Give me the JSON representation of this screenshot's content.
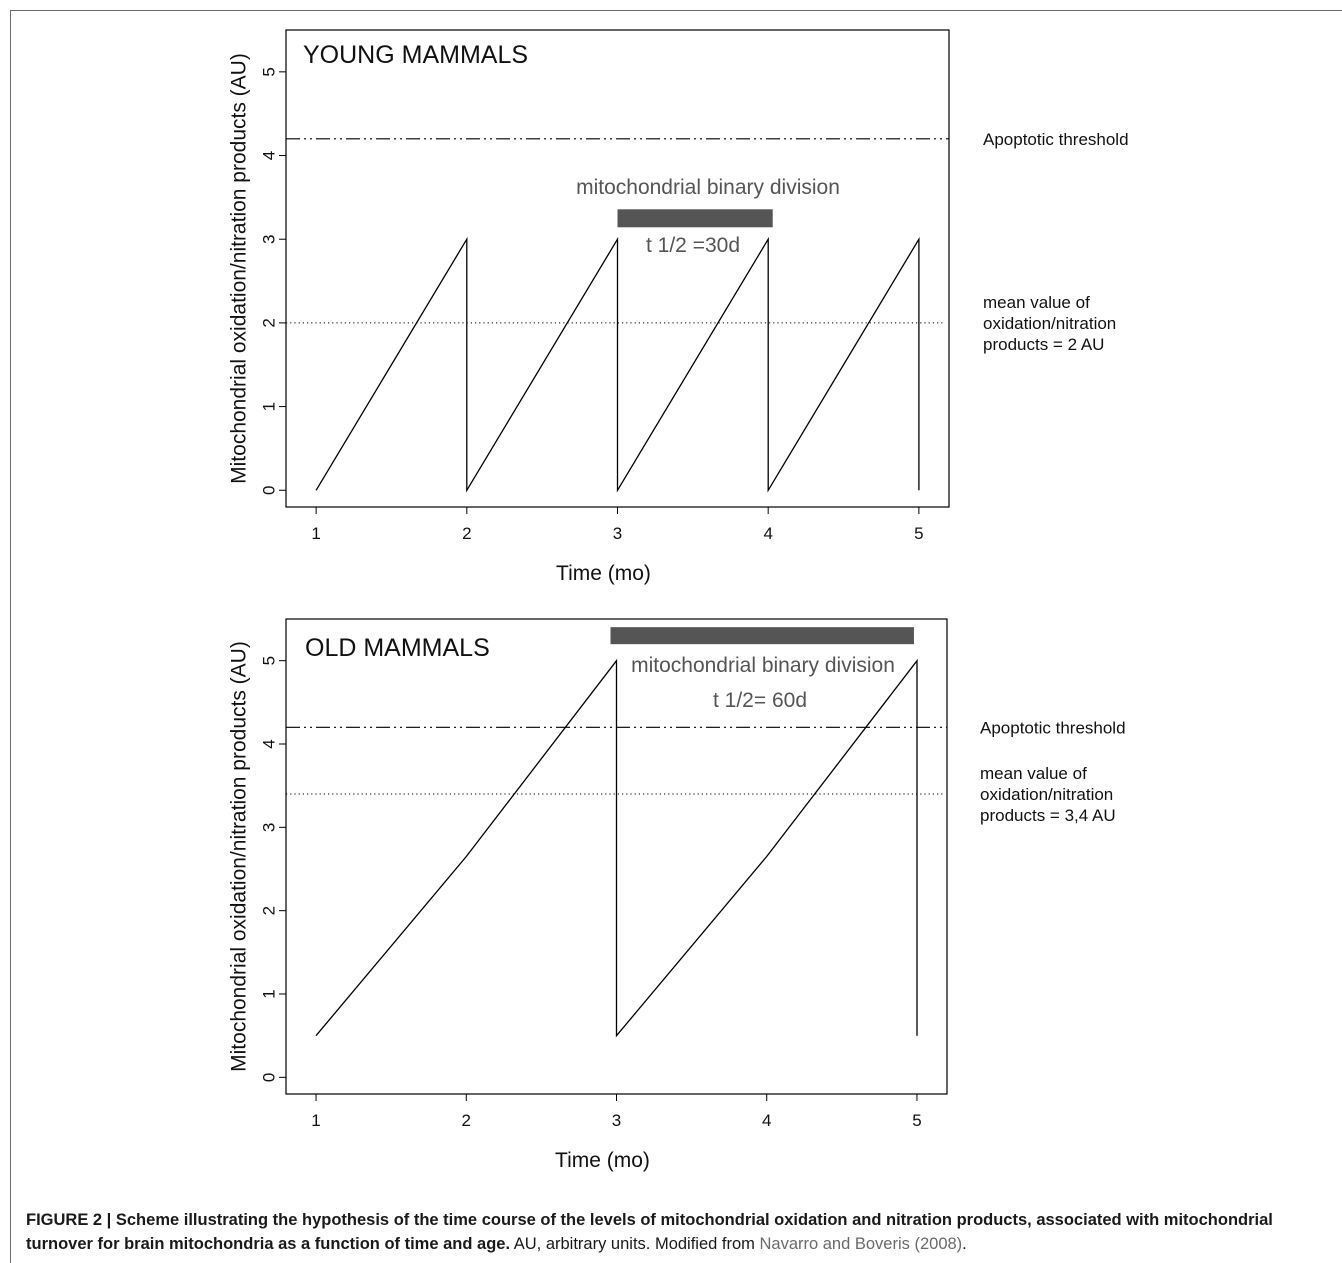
{
  "chart_data": [
    {
      "type": "line",
      "panel_label": "YOUNG MAMMALS",
      "xlabel": "Time (mo)",
      "ylabel": "Mitochondrial oxidation/nitration products (AU)",
      "xlim": [
        0.8,
        5.2
      ],
      "ylim": [
        -0.2,
        5.5
      ],
      "x_ticks": [
        1,
        2,
        3,
        4,
        5
      ],
      "y_ticks": [
        0,
        1,
        2,
        3,
        4,
        5
      ],
      "grid": false,
      "series": [
        {
          "values": [
            [
              1,
              0
            ],
            [
              2,
              3
            ],
            [
              2,
              0
            ],
            [
              3,
              3
            ],
            [
              3,
              0
            ],
            [
              4,
              3
            ],
            [
              4,
              0
            ],
            [
              5,
              3
            ],
            [
              5,
              0
            ]
          ]
        }
      ],
      "reference_lines": [
        {
          "y": 4.2,
          "style": "dash-dot-dot",
          "label": "Apoptotic threshold"
        },
        {
          "y": 2.0,
          "style": "dotted",
          "label_lines": [
            "mean value of",
            "oxidation/nitration",
            "products = 2 AU"
          ]
        }
      ],
      "division_bar": {
        "x_start": 3.0,
        "x_end": 4.03,
        "y": 3.25
      },
      "division_label": "mitochondrial binary division",
      "halflife_label": "t 1/2 =30d"
    },
    {
      "type": "line",
      "panel_label": "OLD MAMMALS",
      "xlabel": "Time (mo)",
      "ylabel": "Mitochondrial oxidation/nitration products (AU)",
      "xlim": [
        0.8,
        5.2
      ],
      "ylim": [
        -0.2,
        5.5
      ],
      "x_ticks": [
        1,
        2,
        3,
        4,
        5
      ],
      "y_ticks": [
        0,
        1,
        2,
        3,
        4,
        5
      ],
      "grid": false,
      "series": [
        {
          "values": [
            [
              1,
              0.5
            ],
            [
              2,
              2.65
            ],
            [
              3,
              5
            ],
            [
              3,
              0.5
            ],
            [
              4,
              2.65
            ],
            [
              5,
              5
            ],
            [
              5,
              0.5
            ]
          ]
        }
      ],
      "reference_lines": [
        {
          "y": 4.2,
          "style": "dash-dot-dot",
          "label": "Apoptotic threshold"
        },
        {
          "y": 3.4,
          "style": "dotted",
          "label_lines": [
            "mean value of",
            "oxidation/nitration",
            "products = 3,4 AU"
          ]
        }
      ],
      "division_bar": {
        "x_start": 2.96,
        "x_end": 4.98,
        "y": 5.3
      },
      "division_label": "mitochondrial binary division",
      "halflife_label": "t 1/2= 60d"
    }
  ],
  "caption": {
    "bold": "FIGURE 2 | Scheme illustrating the hypothesis of the time course of the levels of mitochondrial oxidation and nitration products, associated with mitochondrial turnover for brain mitochondria as a function of time and age.",
    "normal": " AU, arbitrary units. Modified from ",
    "reference": "Navarro and Boveris (2008)",
    "end": "."
  },
  "colors": {
    "line": "#000000",
    "bar": "#555555",
    "annotation_gray": "#555555",
    "reference_link": "#6a6a6a"
  }
}
